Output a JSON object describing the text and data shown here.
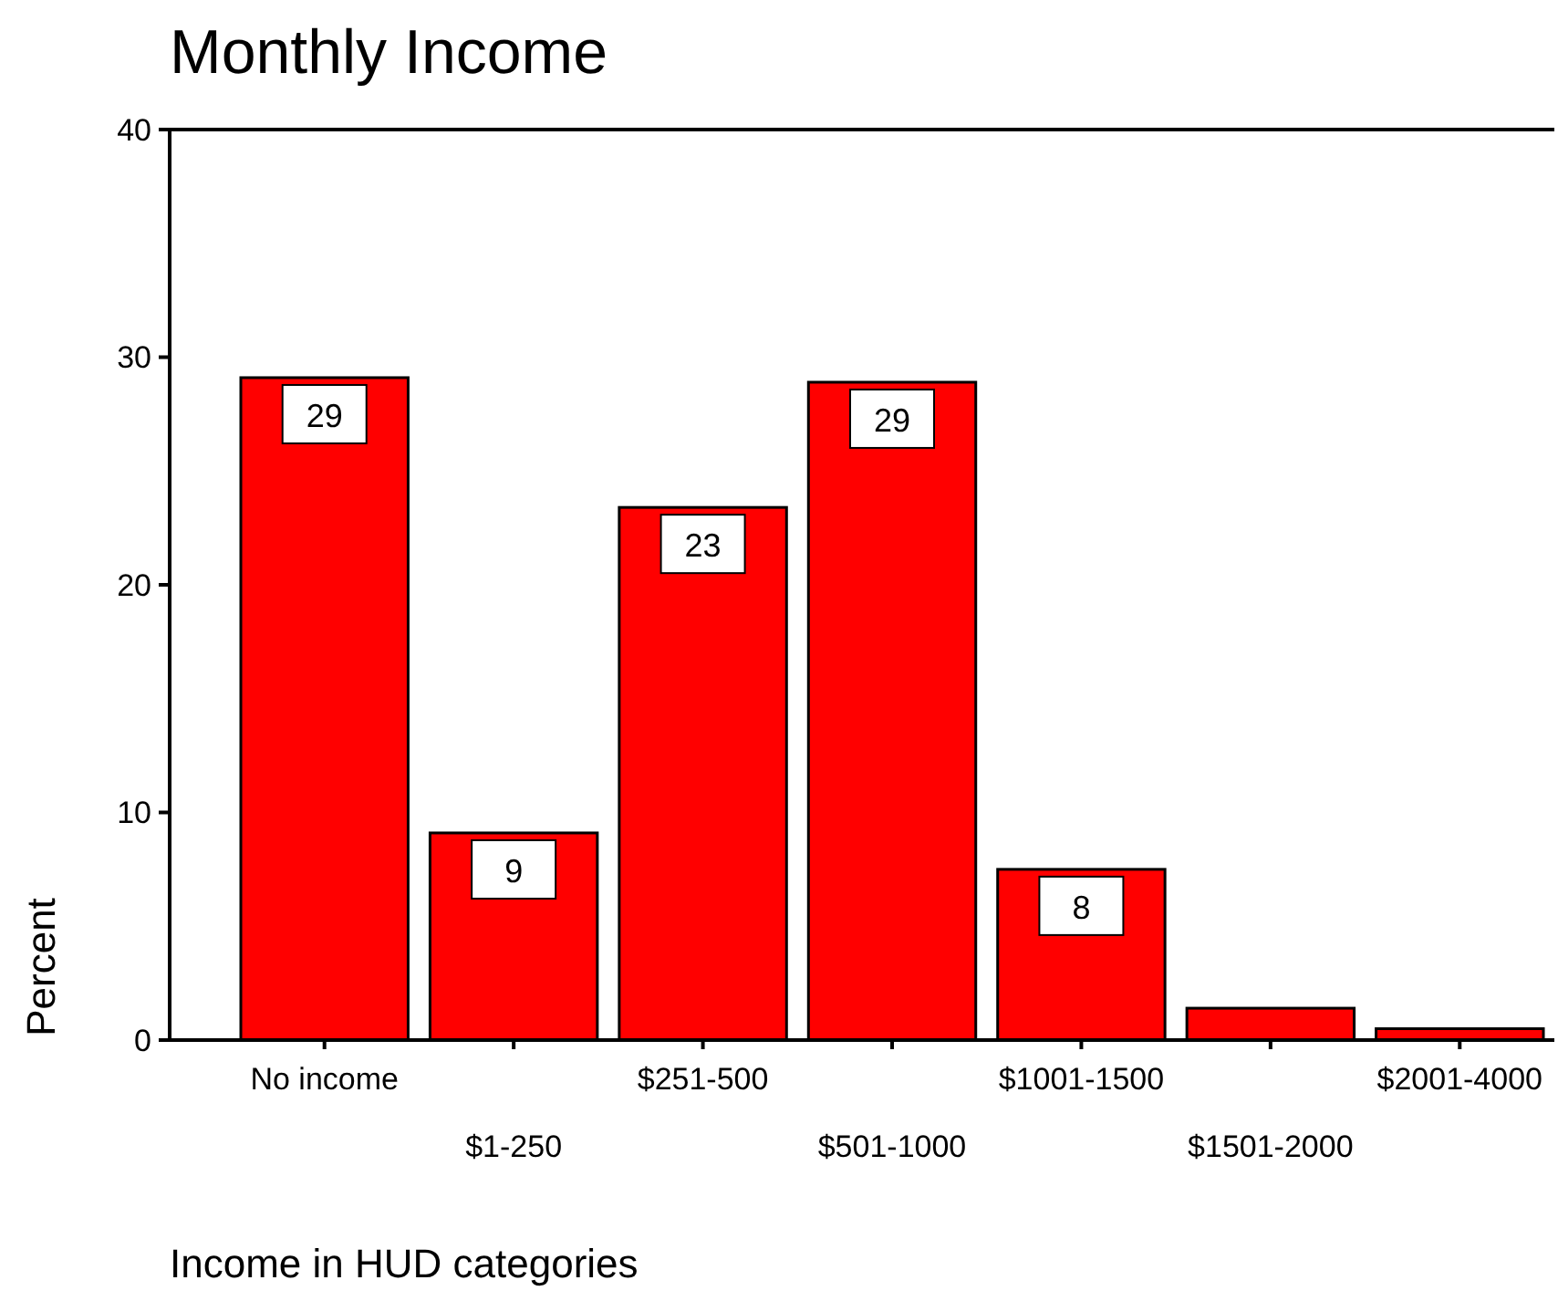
{
  "chart_data": {
    "type": "bar",
    "title": "Monthly Income",
    "xlabel": "Income in HUD categories",
    "ylabel": "Percent",
    "categories": [
      "No income",
      "$1-250",
      "$251-500",
      "$501-1000",
      "$1001-1500",
      "$1501-2000",
      "$2001-4000"
    ],
    "values": [
      29.1,
      9.1,
      23.4,
      28.9,
      7.5,
      1.4,
      0.5
    ],
    "value_labels": [
      "29",
      "9",
      "23",
      "29",
      "8",
      null,
      null
    ],
    "color": "#ff0000",
    "ylim": [
      0,
      40
    ],
    "yticks": [
      0,
      10,
      20,
      30,
      40
    ],
    "grid": false
  }
}
